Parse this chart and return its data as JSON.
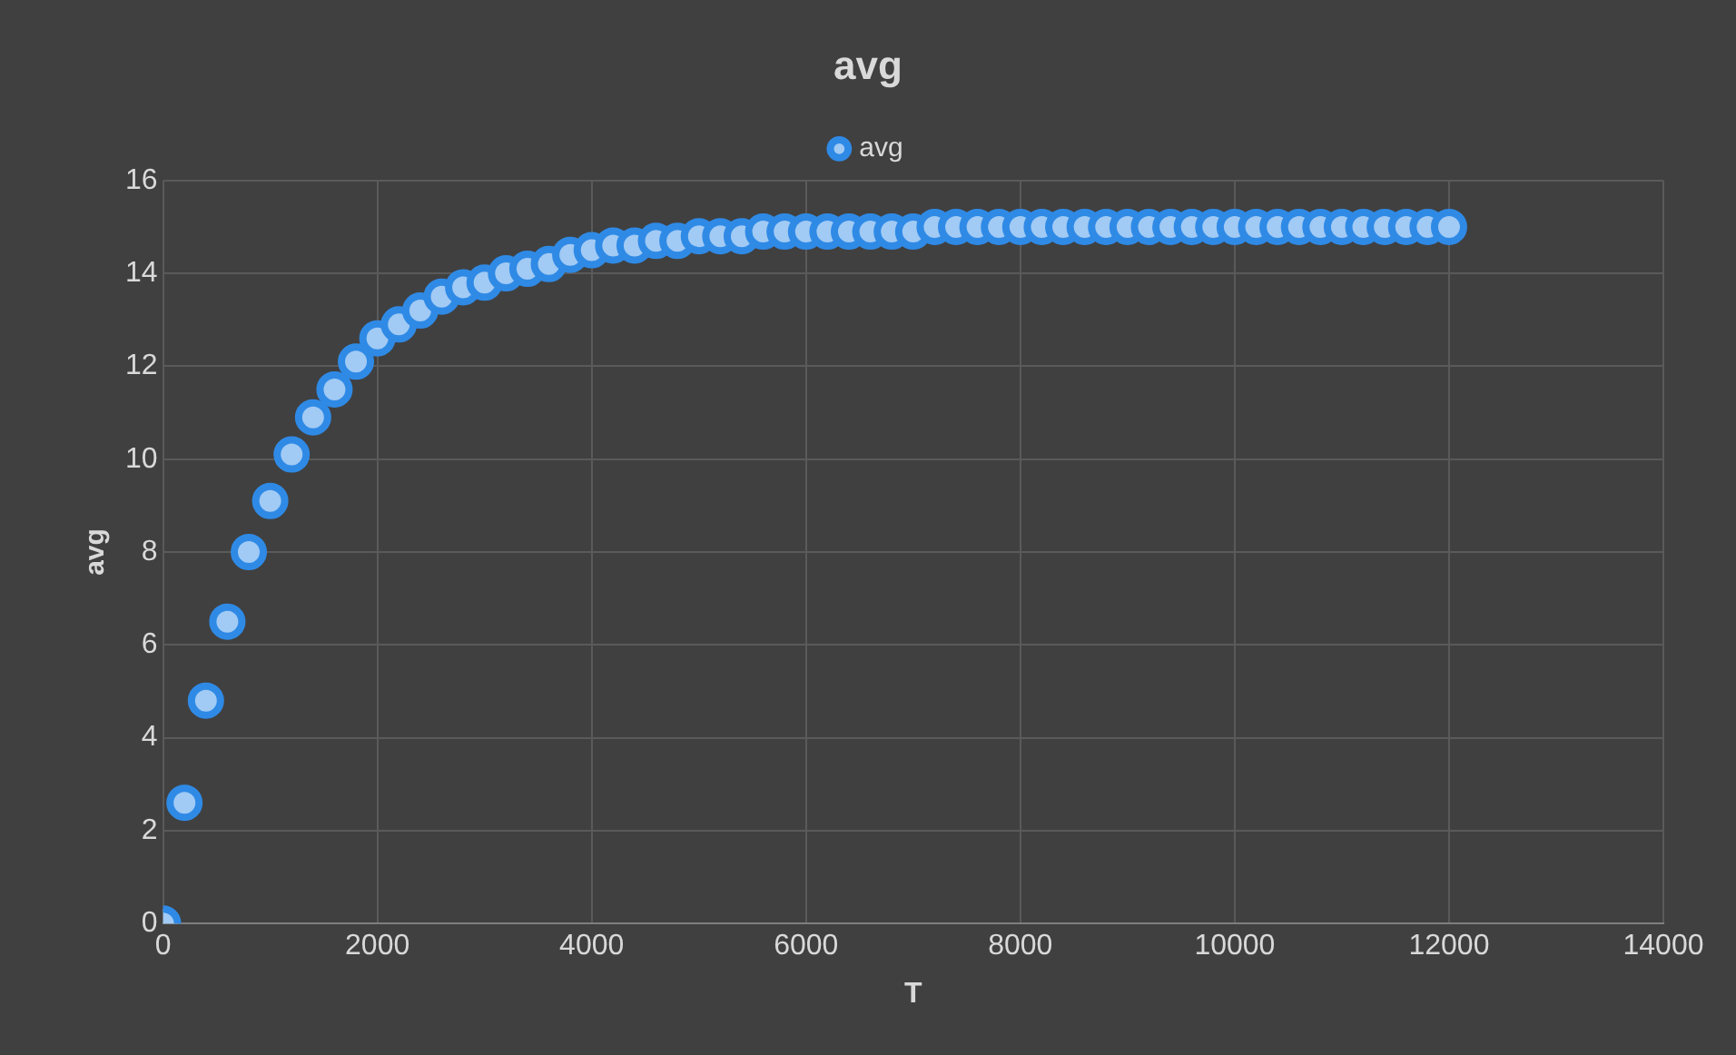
{
  "chart_data": {
    "type": "scatter",
    "title": "avg",
    "xlabel": "T",
    "ylabel": "avg",
    "x": [
      0,
      200,
      400,
      600,
      800,
      1000,
      1200,
      1400,
      1600,
      1800,
      2000,
      2200,
      2400,
      2600,
      2800,
      3000,
      3200,
      3400,
      3600,
      3800,
      4000,
      4200,
      4400,
      4600,
      4800,
      5000,
      5200,
      5400,
      5600,
      5800,
      6000,
      6200,
      6400,
      6600,
      6800,
      7000,
      7200,
      7400,
      7600,
      7800,
      8000,
      8200,
      8400,
      8600,
      8800,
      9000,
      9200,
      9400,
      9600,
      9800,
      10000,
      10200,
      10400,
      10600,
      10800,
      11000,
      11200,
      11400,
      11600,
      11800,
      12000
    ],
    "series": [
      {
        "name": "avg",
        "color": "#2f8ae6",
        "values": [
          0,
          2.6,
          4.8,
          6.5,
          8,
          9.1,
          10.1,
          10.9,
          11.5,
          12.1,
          12.6,
          12.9,
          13.2,
          13.5,
          13.7,
          13.8,
          14,
          14.1,
          14.2,
          14.4,
          14.5,
          14.6,
          14.6,
          14.7,
          14.7,
          14.8,
          14.8,
          14.8,
          14.9,
          14.9,
          14.9,
          14.9,
          14.9,
          14.9,
          14.9,
          14.9,
          15,
          15,
          15,
          15,
          15,
          15,
          15,
          15,
          15,
          15,
          15,
          15,
          15,
          15,
          15,
          15,
          15,
          15,
          15,
          15,
          15,
          15,
          15,
          15,
          15
        ]
      }
    ],
    "xlim": [
      0,
      14000
    ],
    "xticks": [
      0,
      2000,
      4000,
      6000,
      8000,
      10000,
      12000,
      14000
    ],
    "ylim": [
      0,
      16
    ],
    "yticks": [
      0,
      2,
      4,
      6,
      8,
      10,
      12,
      14,
      16
    ],
    "grid": true,
    "legend": "top",
    "marker": "circle"
  }
}
